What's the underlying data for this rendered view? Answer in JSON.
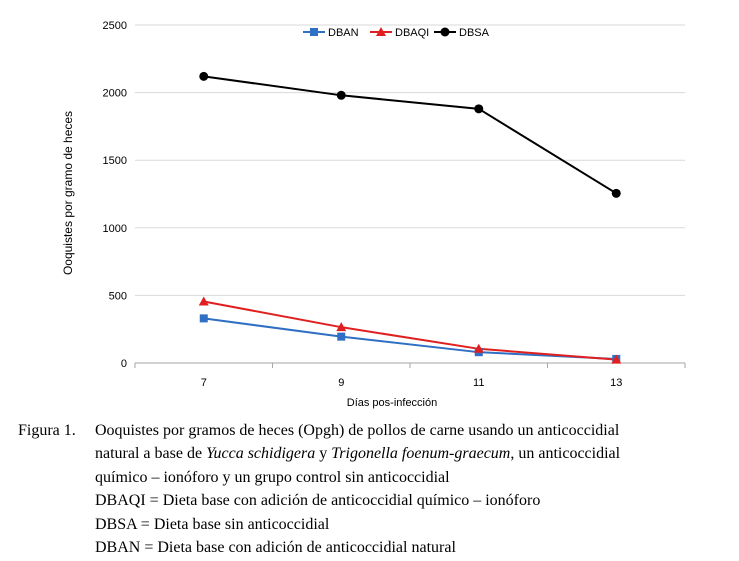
{
  "chart_data": {
    "type": "line",
    "x": [
      7,
      9,
      11,
      13
    ],
    "x_tick_labels": [
      "7",
      "9",
      "11",
      "13"
    ],
    "xlabel": "Días pos-infección",
    "ylabel": "Ooquistes por gramo de heces",
    "ylim": [
      0,
      2500
    ],
    "y_ticks": [
      0,
      500,
      1000,
      1500,
      2000,
      2500
    ],
    "y_tick_labels": [
      "0",
      "500",
      "1000",
      "1500",
      "2000",
      "2500"
    ],
    "grid": "horizontal",
    "legend_position": "top-center",
    "series": [
      {
        "name": "DBAN",
        "values": [
          330,
          195,
          80,
          30
        ],
        "color": "#2f6fc4",
        "marker": "square"
      },
      {
        "name": "DBAQI",
        "values": [
          455,
          265,
          105,
          25
        ],
        "color": "#e02020",
        "marker": "triangle"
      },
      {
        "name": "DBSA",
        "values": [
          2120,
          1980,
          1880,
          1255
        ],
        "color": "#000000",
        "marker": "circle"
      }
    ]
  },
  "caption": {
    "label": "Figura 1.",
    "line1": "Ooquistes por gramos de heces (Opgh) de pollos de carne usando un anticoccidial",
    "line2_pre": "natural a base de ",
    "line2_em1": "Yucca schidigera",
    "line2_mid": " y ",
    "line2_em2": "Trigonella foenum-graecum",
    "line2_post": ", un anticoccidial",
    "line3": "químico – ionóforo y un grupo control sin anticoccidial",
    "line4": "DBAQI = Dieta base con adición de anticoccidial químico – ionóforo",
    "line5": "DBSA = Dieta base sin anticoccidial",
    "line6": "DBAN = Dieta base con adición de anticoccidial natural"
  }
}
